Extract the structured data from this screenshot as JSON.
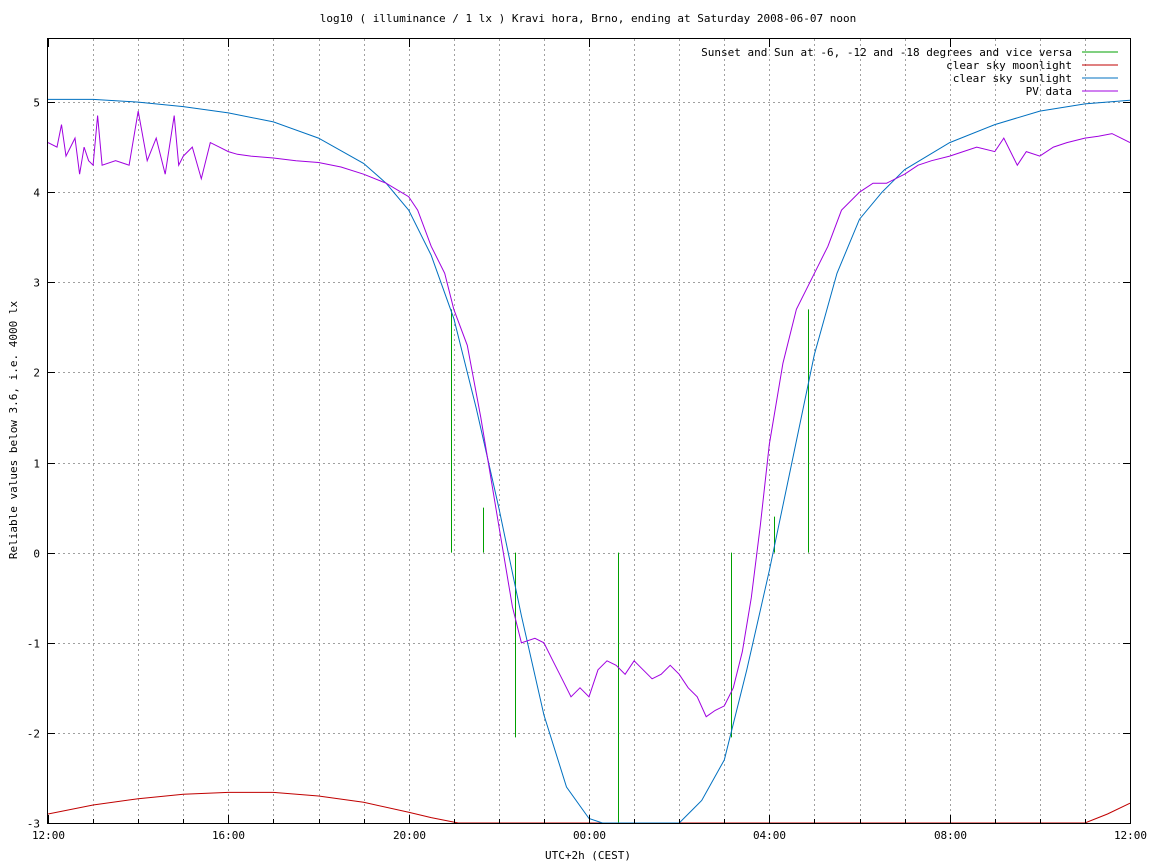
{
  "chart_data": {
    "type": "line",
    "title": "log10 ( illuminance / 1 lx ) Kravi hora, Brno, ending at Saturday 2008-06-07 noon",
    "xlabel": "UTC+2h (CEST)",
    "ylabel": "Reliable values below 3.6, i.e. 4000 lx",
    "xlim": [
      0,
      24
    ],
    "ylim": [
      -3,
      5.7
    ],
    "x_ticks": [
      {
        "v": 0,
        "label": "12:00"
      },
      {
        "v": 4,
        "label": "16:00"
      },
      {
        "v": 8,
        "label": "20:00"
      },
      {
        "v": 12,
        "label": "00:00"
      },
      {
        "v": 16,
        "label": "04:00"
      },
      {
        "v": 20,
        "label": "08:00"
      },
      {
        "v": 24,
        "label": "12:00"
      }
    ],
    "x_minor_step": 1,
    "y_ticks": [
      {
        "v": -3,
        "label": "-3"
      },
      {
        "v": -2,
        "label": "-2"
      },
      {
        "v": -1,
        "label": "-1"
      },
      {
        "v": 0,
        "label": "0"
      },
      {
        "v": 1,
        "label": "1"
      },
      {
        "v": 2,
        "label": "2"
      },
      {
        "v": 3,
        "label": "3"
      },
      {
        "v": 4,
        "label": "4"
      },
      {
        "v": 5,
        "label": "5"
      }
    ],
    "grid": true,
    "legend_position": "top-right",
    "series": [
      {
        "name": "Sunset and Sun at -6, -12 and -18 degrees and vice versa",
        "color": "#00a000",
        "kind": "impulses",
        "impulses": [
          {
            "x": 8.95,
            "y0": 0,
            "y1": 2.7
          },
          {
            "x": 9.65,
            "y0": 0,
            "y1": 0.5
          },
          {
            "x": 10.35,
            "y0": 0,
            "y1": -2.05
          },
          {
            "x": 12.65,
            "y0": 0,
            "y1": -3
          },
          {
            "x": 15.15,
            "y0": 0,
            "y1": -2.05
          },
          {
            "x": 16.1,
            "y0": 0,
            "y1": 0.4
          },
          {
            "x": 16.85,
            "y0": 0,
            "y1": 2.7
          }
        ]
      },
      {
        "name": "clear sky moonlight",
        "color": "#c00000",
        "kind": "line",
        "x": [
          0,
          1,
          2,
          3,
          4,
          5,
          6,
          7,
          8,
          8.5,
          9.1,
          23,
          23.5,
          24
        ],
        "y": [
          -2.9,
          -2.8,
          -2.73,
          -2.68,
          -2.66,
          -2.66,
          -2.7,
          -2.77,
          -2.88,
          -2.94,
          -3.0,
          -3.0,
          -2.9,
          -2.78
        ]
      },
      {
        "name": "clear sky sunlight",
        "color": "#0070c0",
        "kind": "line",
        "x": [
          0,
          1,
          2,
          3,
          4,
          5,
          6,
          7,
          7.5,
          8,
          8.5,
          9,
          9.5,
          10,
          10.5,
          11,
          11.5,
          12,
          12.3,
          14,
          14.3,
          14.5,
          15,
          15.5,
          16,
          16.5,
          17,
          17.5,
          18,
          18.5,
          19,
          20,
          21,
          22,
          23,
          24
        ],
        "y": [
          5.03,
          5.03,
          5.0,
          4.95,
          4.88,
          4.78,
          4.6,
          4.32,
          4.1,
          3.8,
          3.3,
          2.6,
          1.6,
          0.5,
          -0.7,
          -1.8,
          -2.6,
          -2.95,
          -3.0,
          -3.0,
          -2.85,
          -2.75,
          -2.3,
          -1.3,
          -0.2,
          1.0,
          2.2,
          3.1,
          3.7,
          4.0,
          4.25,
          4.55,
          4.75,
          4.9,
          4.98,
          5.02
        ]
      },
      {
        "name": "PV data",
        "color": "#a000e0",
        "kind": "line",
        "x": [
          0,
          0.2,
          0.3,
          0.4,
          0.5,
          0.6,
          0.7,
          0.8,
          0.9,
          1.0,
          1.1,
          1.2,
          1.5,
          1.8,
          2.0,
          2.2,
          2.4,
          2.6,
          2.8,
          2.9,
          3.0,
          3.2,
          3.4,
          3.6,
          3.8,
          4.0,
          4.2,
          4.5,
          5.0,
          5.5,
          6.0,
          6.5,
          7.0,
          7.5,
          8.0,
          8.2,
          8.5,
          8.8,
          9.0,
          9.3,
          9.6,
          10.0,
          10.3,
          10.5,
          10.8,
          11.0,
          11.2,
          11.4,
          11.6,
          11.8,
          12.0,
          12.2,
          12.4,
          12.6,
          12.8,
          13.0,
          13.2,
          13.4,
          13.6,
          13.8,
          14.0,
          14.2,
          14.4,
          14.6,
          14.8,
          15.0,
          15.2,
          15.4,
          15.6,
          15.8,
          16.0,
          16.3,
          16.6,
          17.0,
          17.3,
          17.6,
          18.0,
          18.3,
          18.6,
          19.0,
          19.3,
          19.6,
          20.0,
          20.3,
          20.6,
          21.0,
          21.2,
          21.5,
          21.7,
          22.0,
          22.3,
          22.6,
          23.0,
          23.3,
          23.6,
          23.8,
          24
        ],
        "y": [
          4.55,
          4.5,
          4.75,
          4.4,
          4.5,
          4.6,
          4.2,
          4.5,
          4.35,
          4.3,
          4.85,
          4.3,
          4.35,
          4.3,
          4.9,
          4.35,
          4.6,
          4.2,
          4.85,
          4.3,
          4.4,
          4.5,
          4.15,
          4.55,
          4.5,
          4.45,
          4.42,
          4.4,
          4.38,
          4.35,
          4.33,
          4.28,
          4.2,
          4.1,
          3.95,
          3.8,
          3.4,
          3.1,
          2.7,
          2.3,
          1.5,
          0.3,
          -0.6,
          -1.0,
          -0.95,
          -1.0,
          -1.2,
          -1.4,
          -1.6,
          -1.5,
          -1.6,
          -1.3,
          -1.2,
          -1.25,
          -1.35,
          -1.2,
          -1.3,
          -1.4,
          -1.35,
          -1.25,
          -1.35,
          -1.5,
          -1.6,
          -1.82,
          -1.75,
          -1.7,
          -1.5,
          -1.1,
          -0.5,
          0.3,
          1.2,
          2.1,
          2.7,
          3.1,
          3.4,
          3.8,
          4.0,
          4.1,
          4.1,
          4.2,
          4.3,
          4.35,
          4.4,
          4.45,
          4.5,
          4.45,
          4.6,
          4.3,
          4.45,
          4.4,
          4.5,
          4.55,
          4.6,
          4.62,
          4.65,
          4.6,
          4.55
        ]
      }
    ]
  }
}
